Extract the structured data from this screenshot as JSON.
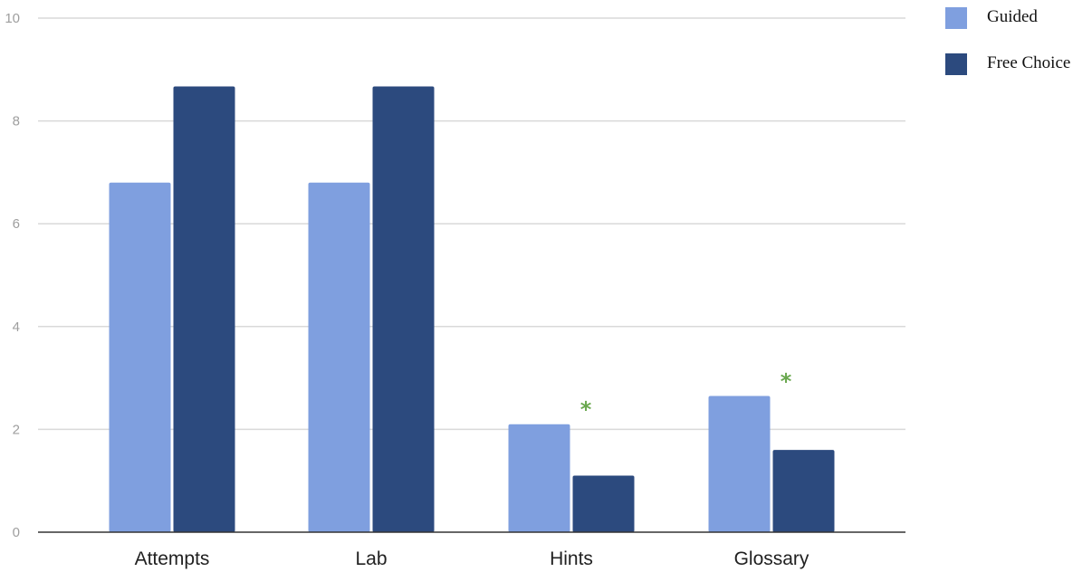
{
  "chart_data": {
    "type": "bar",
    "categories": [
      "Attempts",
      "Lab",
      "Hints",
      "Glossary"
    ],
    "series": [
      {
        "name": "Guided",
        "color": "#7f9fdf",
        "values": [
          6.8,
          6.8,
          2.1,
          2.65
        ]
      },
      {
        "name": "Free Choice",
        "color": "#2c4a7e",
        "values": [
          8.67,
          8.67,
          1.1,
          1.6
        ]
      }
    ],
    "ylim": [
      0,
      10
    ],
    "yticks": [
      "0",
      "2",
      "4",
      "6",
      "8",
      "10"
    ],
    "grid": true,
    "legend": "top-right",
    "annotations": [
      {
        "category": "Hints",
        "text": "*",
        "color": "#6aa84f"
      },
      {
        "category": "Glossary",
        "text": "*",
        "color": "#6aa84f"
      }
    ]
  }
}
